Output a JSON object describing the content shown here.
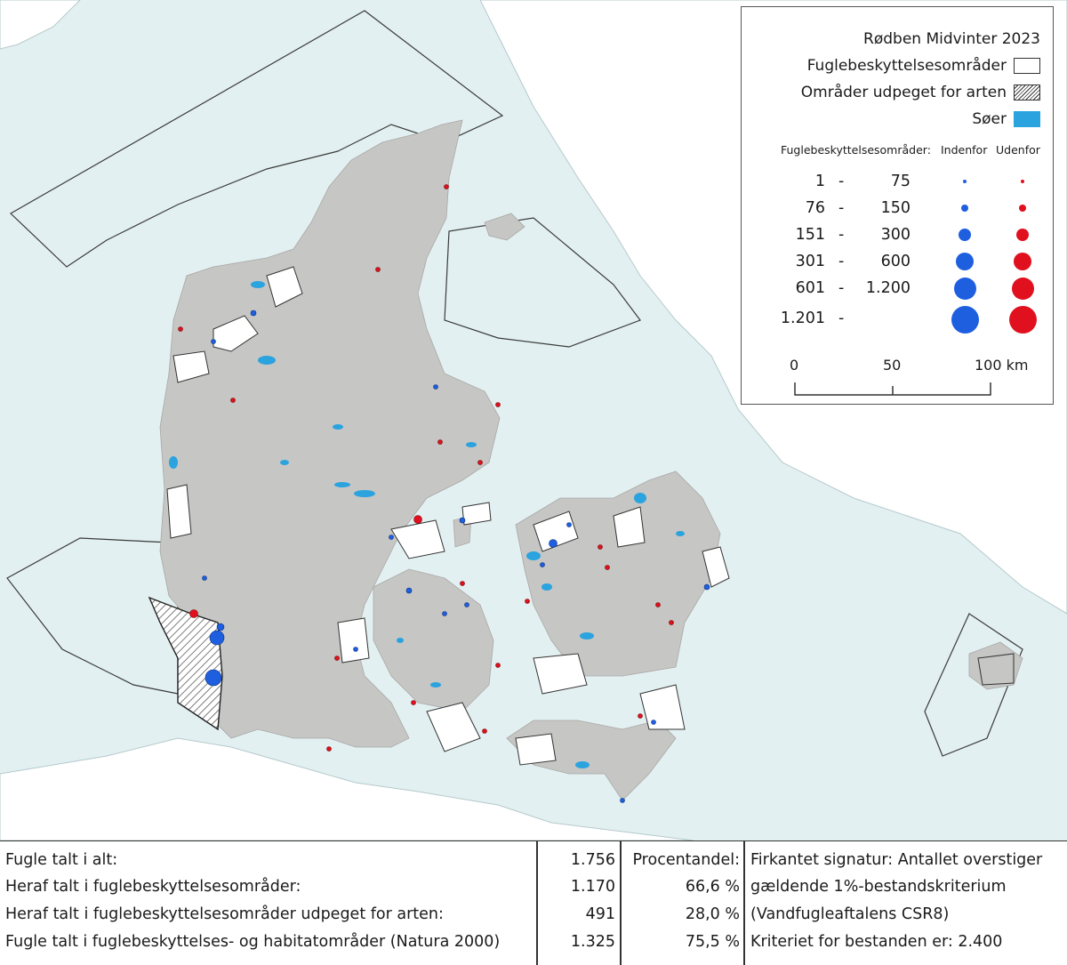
{
  "legend": {
    "title": "Rødben Midvinter 2023",
    "bird_areas_label": "Fuglebeskyttelsesområder",
    "designated_label": "Områder udpeget for arten",
    "lakes_label": "Søer",
    "columns_label": "Fuglebeskyttelsesområder:",
    "inside_label": "Indenfor",
    "outside_label": "Udenfor",
    "size_classes": [
      {
        "low": "1",
        "high": "75"
      },
      {
        "low": "76",
        "high": "150"
      },
      {
        "low": "151",
        "high": "300"
      },
      {
        "low": "301",
        "high": "600"
      },
      {
        "low": "601",
        "high": "1.200"
      },
      {
        "low": "1.201",
        "high": ""
      }
    ],
    "scale_labels": [
      "0",
      "50",
      "100 km"
    ]
  },
  "colors": {
    "sea": "#e3f0f1",
    "land": "#c6c6c4",
    "foreign_land": "#ffffff",
    "lakes": "#2aa3df",
    "inside_dots": "#1e5fe0",
    "outside_dots": "#e0101e"
  },
  "table": {
    "rows": [
      {
        "label": "Fugle talt i alt:",
        "value": "1.756",
        "pct": "Procentandel:",
        "note": "Firkantet signatur: Antallet overstiger"
      },
      {
        "label": "Heraf talt i fuglebeskyttelsesområder:",
        "value": "1.170",
        "pct": "66,6 %",
        "note": "gældende 1%-bestandskriterium"
      },
      {
        "label": "Heraf talt i fuglebeskyttelsesområder udpeget for arten:",
        "value": "491",
        "pct": "28,0 %",
        "note": "(Vandfugleaftalens CSR8)"
      },
      {
        "label": "Fugle talt i fuglebeskyttelses- og habitatområder (Natura 2000)",
        "value": "1.325",
        "pct": "75,5 %",
        "note": "Kriteriet for bestanden er: 2.400"
      }
    ]
  }
}
